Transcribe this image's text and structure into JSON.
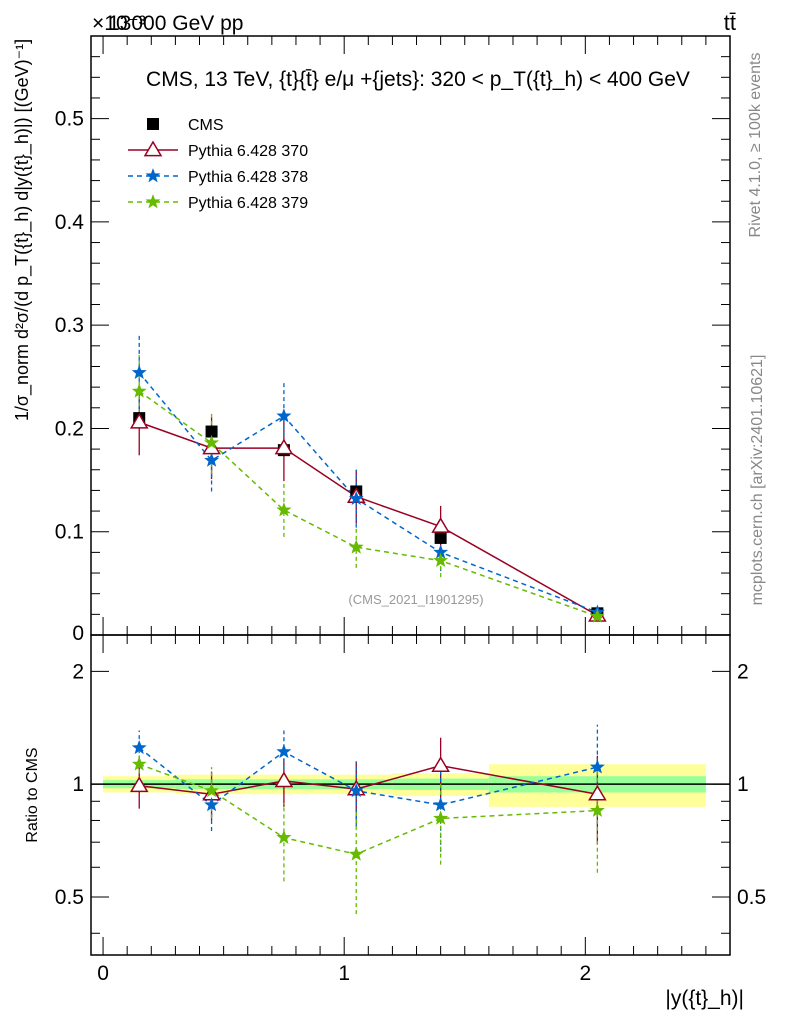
{
  "header": {
    "energy_label": "13000 GeV pp",
    "process_label": "tt̄",
    "exponent_label": "×10⁻³"
  },
  "side_labels": {
    "rivet": "Rivet 4.1.0, ≥ 100k events",
    "mcplots": "mcplots.cern.ch [arXiv:2401.10621]"
  },
  "chart_data": {
    "type": "scatter",
    "title": "CMS, 13 TeV, {t}{t̄} e/μ +{jets}: 320 < p_T({t}_h) < 400 GeV",
    "watermark": "(CMS_2021_I1901295)",
    "xlabel": "|y({t}_h)|",
    "ylabel": "1/σ_norm d²σ/(d p_T({t}_h) d|y({t}_h)|) [(GeV)⁻¹]",
    "ratio_ylabel": "Ratio to CMS",
    "xlim": [
      -0.05,
      2.6
    ],
    "ylim": [
      0,
      0.58
    ],
    "ratio_ylim": [
      0.35,
      2.5
    ],
    "x_ticks": [
      0,
      1,
      2
    ],
    "y_ticks": [
      0.1,
      0.2,
      0.3,
      0.4,
      0.5
    ],
    "y_zero_label": "0",
    "ratio_ticks": [
      0.5,
      1,
      2
    ],
    "legend_position": "top-left",
    "data": {
      "name": "CMS",
      "x": [
        0.15,
        0.45,
        0.75,
        1.05,
        1.4,
        2.05
      ],
      "x_lo": [
        0.0,
        0.3,
        0.6,
        0.9,
        1.2,
        1.6
      ],
      "x_hi": [
        0.3,
        0.6,
        0.9,
        1.2,
        1.6,
        2.5
      ],
      "y": [
        0.21,
        0.197,
        0.179,
        0.139,
        0.094,
        0.021
      ],
      "err": [
        0.006,
        0.005,
        0.005,
        0.004,
        0.004,
        0.002
      ],
      "band_stat": [
        0.025,
        0.03,
        0.03,
        0.03,
        0.035,
        0.05
      ],
      "band_tot": [
        0.05,
        0.06,
        0.06,
        0.06,
        0.07,
        0.13
      ],
      "color": "#000000"
    },
    "series": [
      {
        "name": "Pythia 6.428 370",
        "x": [
          0.15,
          0.45,
          0.75,
          1.05,
          1.4,
          2.05
        ],
        "y": [
          0.206,
          0.181,
          0.181,
          0.134,
          0.105,
          0.019
        ],
        "err": [
          0.032,
          0.03,
          0.032,
          0.026,
          0.02,
          0.004
        ],
        "ratio": [
          0.99,
          0.94,
          1.02,
          0.97,
          1.12,
          0.94
        ],
        "ratio_err": [
          0.13,
          0.14,
          0.15,
          0.18,
          0.21,
          0.25
        ],
        "color": "#990022",
        "marker": "triangle-open",
        "dashed": false
      },
      {
        "name": "Pythia 6.428 378",
        "x": [
          0.15,
          0.45,
          0.75,
          1.05,
          1.4,
          2.05
        ],
        "y": [
          0.254,
          0.169,
          0.212,
          0.132,
          0.08,
          0.022
        ],
        "err": [
          0.036,
          0.03,
          0.033,
          0.028,
          0.018,
          0.006
        ],
        "ratio": [
          1.25,
          0.88,
          1.22,
          0.96,
          0.88,
          1.11
        ],
        "ratio_err": [
          0.14,
          0.13,
          0.17,
          0.19,
          0.22,
          0.33
        ],
        "color": "#0066cc",
        "marker": "star",
        "dashed": true
      },
      {
        "name": "Pythia 6.428 379",
        "x": [
          0.15,
          0.45,
          0.75,
          1.05,
          1.4,
          2.05
        ],
        "y": [
          0.236,
          0.186,
          0.121,
          0.085,
          0.072,
          0.018
        ],
        "err": [
          0.035,
          0.03,
          0.026,
          0.02,
          0.016,
          0.004
        ],
        "ratio": [
          1.13,
          0.96,
          0.72,
          0.65,
          0.81,
          0.85
        ],
        "ratio_err": [
          0.15,
          0.15,
          0.17,
          0.2,
          0.2,
          0.27
        ],
        "color": "#66bb00",
        "marker": "star",
        "dashed": true
      }
    ]
  },
  "colors": {
    "band_outer": "#ffff99",
    "band_inner": "#99ff99",
    "axis": "#000000",
    "watermark": "#999999",
    "side_text": "#888888"
  }
}
